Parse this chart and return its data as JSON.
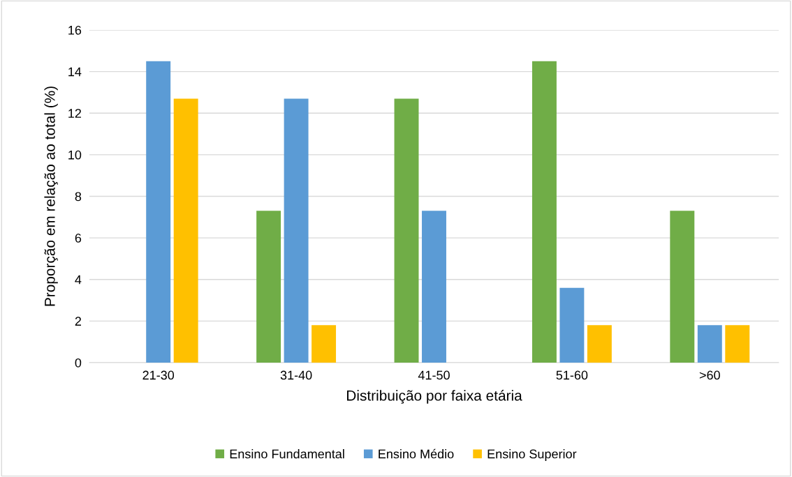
{
  "chart_data": {
    "type": "bar",
    "xlabel": "Distribuição por faixa etária",
    "ylabel": "Proporção em relação ao total (%)",
    "categories": [
      "21-30",
      "31-40",
      "41-50",
      "51-60",
      ">60"
    ],
    "series": [
      {
        "name": "Ensino Fundamental",
        "color": "#70ad47",
        "values": [
          0,
          7.3,
          12.7,
          14.5,
          7.3
        ]
      },
      {
        "name": "Ensino Médio",
        "color": "#5b9bd5",
        "values": [
          14.5,
          12.7,
          7.3,
          3.6,
          1.8
        ]
      },
      {
        "name": "Ensino Superior",
        "color": "#ffc000",
        "values": [
          12.7,
          1.8,
          0,
          1.8,
          1.8
        ]
      }
    ],
    "ylim": [
      0,
      16
    ],
    "yticks": [
      0,
      2,
      4,
      6,
      8,
      10,
      12,
      14,
      16
    ],
    "grid": "y",
    "legend": "bottom"
  }
}
